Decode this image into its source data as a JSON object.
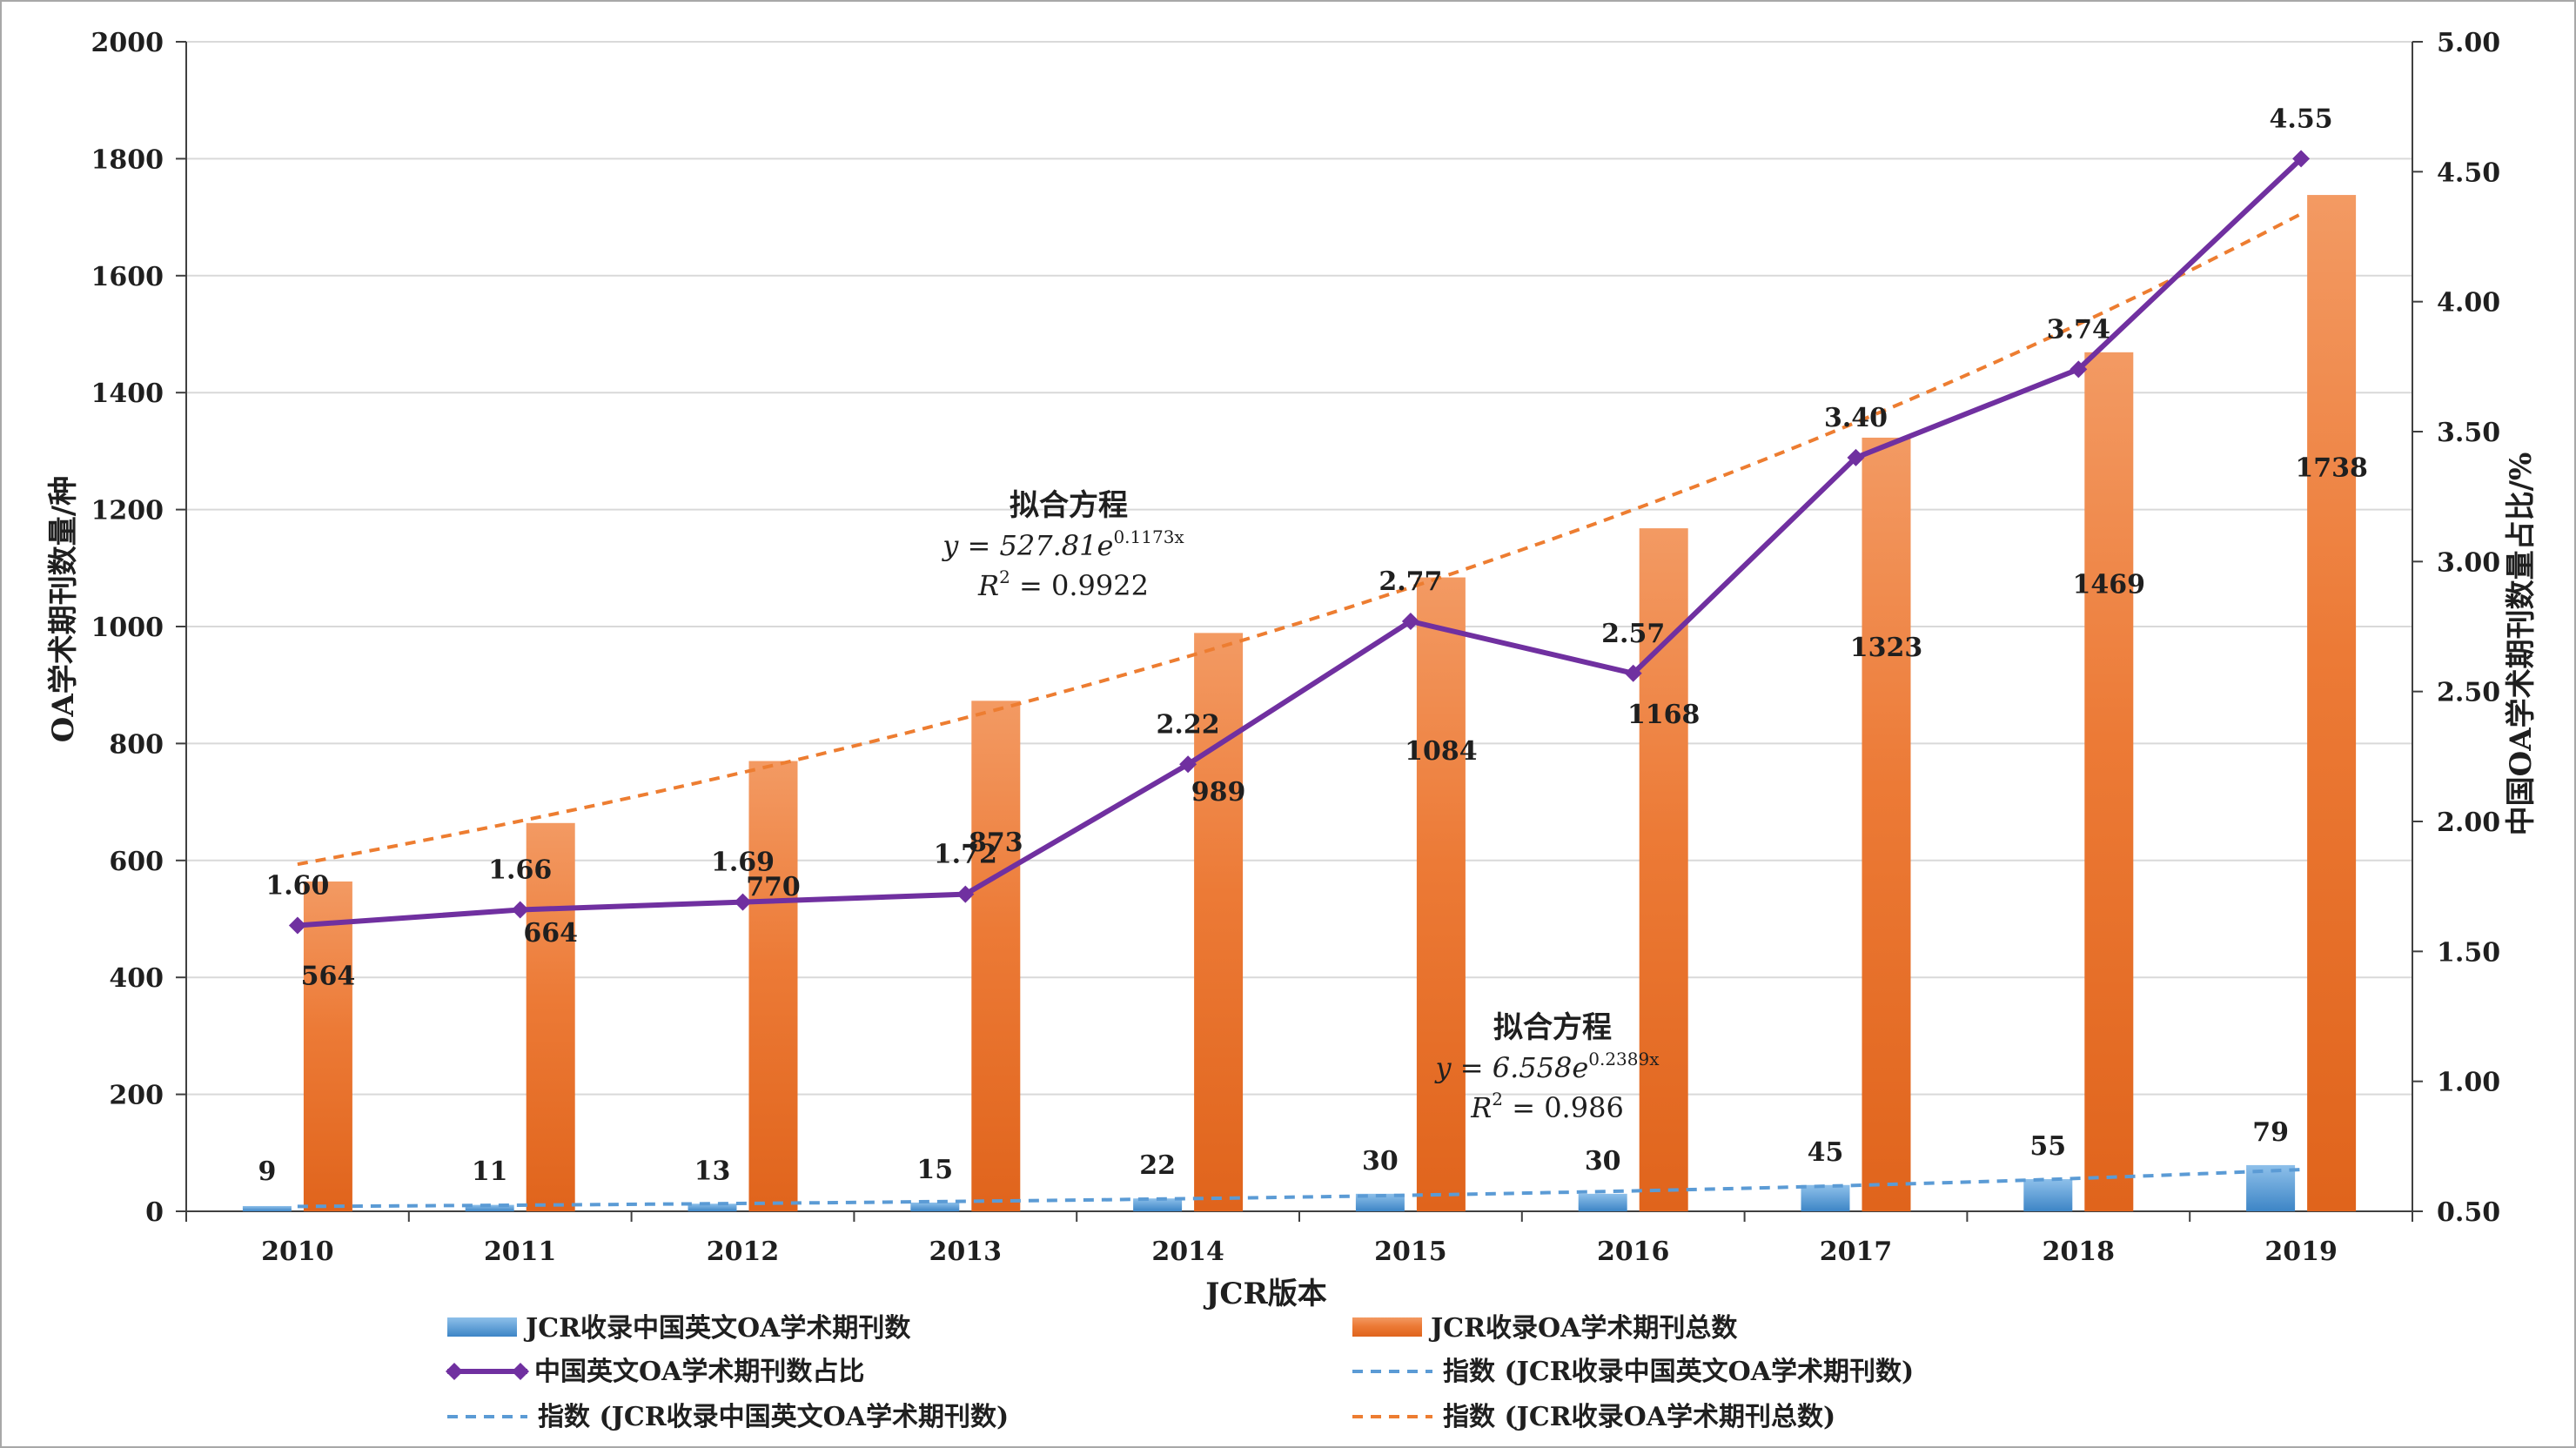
{
  "chart_data": {
    "type": "bar",
    "categories": [
      "2010",
      "2011",
      "2012",
      "2013",
      "2014",
      "2015",
      "2016",
      "2017",
      "2018",
      "2019"
    ],
    "xlabel": "JCR版本",
    "ylabel_left": "OA学术期刊数量/种",
    "ylabel_right": "中国OA学术期刊数量占比/%",
    "ylim_left": [
      0,
      2000
    ],
    "ylim_right": [
      0.5,
      5.0
    ],
    "yticks_left": [
      "0",
      "200",
      "400",
      "600",
      "800",
      "1000",
      "1200",
      "1400",
      "1600",
      "1800",
      "2000"
    ],
    "yticks_right": [
      "0.50",
      "1.00",
      "1.50",
      "2.00",
      "2.50",
      "3.00",
      "3.50",
      "4.00",
      "4.50",
      "5.00"
    ],
    "grid": true,
    "legend_position": "bottom",
    "series": [
      {
        "name": "JCR收录中国英文OA学术期刊数",
        "kind": "bar",
        "axis": "left",
        "color": "#5b9bd5",
        "values": [
          9,
          11,
          13,
          15,
          22,
          30,
          30,
          45,
          55,
          79
        ]
      },
      {
        "name": "JCR收录OA学术期刊总数",
        "kind": "bar",
        "axis": "left",
        "color": "#ed7d31",
        "values": [
          564,
          664,
          770,
          873,
          989,
          1084,
          1168,
          1323,
          1469,
          1738
        ]
      },
      {
        "name": "中国英文OA学术期刊数占比",
        "kind": "line",
        "axis": "right",
        "color": "#7030a0",
        "values": [
          1.6,
          1.66,
          1.69,
          1.72,
          2.22,
          2.77,
          2.57,
          3.4,
          3.74,
          4.55
        ],
        "labels": [
          "1.60",
          "1.66",
          "1.69",
          "1.72",
          "2.22",
          "2.77",
          "2.57",
          "3.40",
          "3.74",
          "4.55"
        ]
      },
      {
        "name": "指数 (JCR收录中国英文OA学术期刊数)",
        "kind": "trend",
        "axis": "left",
        "color": "#5b9bd5",
        "a": 6.558,
        "b": 0.2389
      },
      {
        "name": "指数 (JCR收录OA学术期刊总数)",
        "kind": "trend",
        "axis": "left",
        "color": "#ed7d31",
        "a": 527.81,
        "b": 0.1173
      }
    ],
    "annotations": [
      {
        "title": "拟合方程",
        "eq_lhs": "y = 527.81e",
        "eq_exp": "0.1173x",
        "r2_rhs": " = 0.9922"
      },
      {
        "title": "拟合方程",
        "eq_lhs": "y = 6.558e",
        "eq_exp": "0.2389x",
        "r2_rhs": " = 0.986"
      }
    ],
    "legend": [
      {
        "label": "JCR收录中国英文OA学术期刊数",
        "kind": "bar",
        "color": "#5b9bd5"
      },
      {
        "label": "JCR收录OA学术期刊总数",
        "kind": "bar",
        "color": "#ed7d31"
      },
      {
        "label": "中国英文OA学术期刊数占比",
        "kind": "line",
        "color": "#7030a0"
      },
      {
        "label": "指数 (JCR收录中国英文OA学术期刊数)",
        "kind": "dash",
        "color": "#5b9bd5"
      },
      {
        "label": "指数 (JCR收录中国英文OA学术期刊数)",
        "kind": "dash",
        "color": "#5b9bd5"
      },
      {
        "label": "指数 (JCR收录OA学术期刊总数)",
        "kind": "dash",
        "color": "#ed7d31"
      }
    ]
  }
}
